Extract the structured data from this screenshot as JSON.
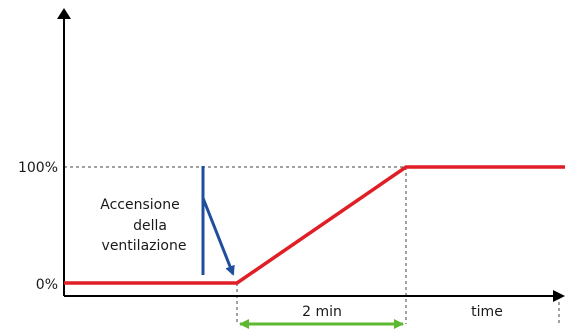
{
  "diagram": {
    "y_labels": {
      "top": "100%",
      "bottom": "0%"
    },
    "annotation": {
      "lines": [
        "Accensione",
        "della",
        "ventilazione"
      ]
    },
    "duration_label": "2 min",
    "x_axis_label": "time",
    "colors": {
      "ramp": "#e01e25",
      "arrow": "#1f4e9c",
      "duration": "#5cb82e",
      "axis": "#000000",
      "guide": "#444444"
    }
  }
}
